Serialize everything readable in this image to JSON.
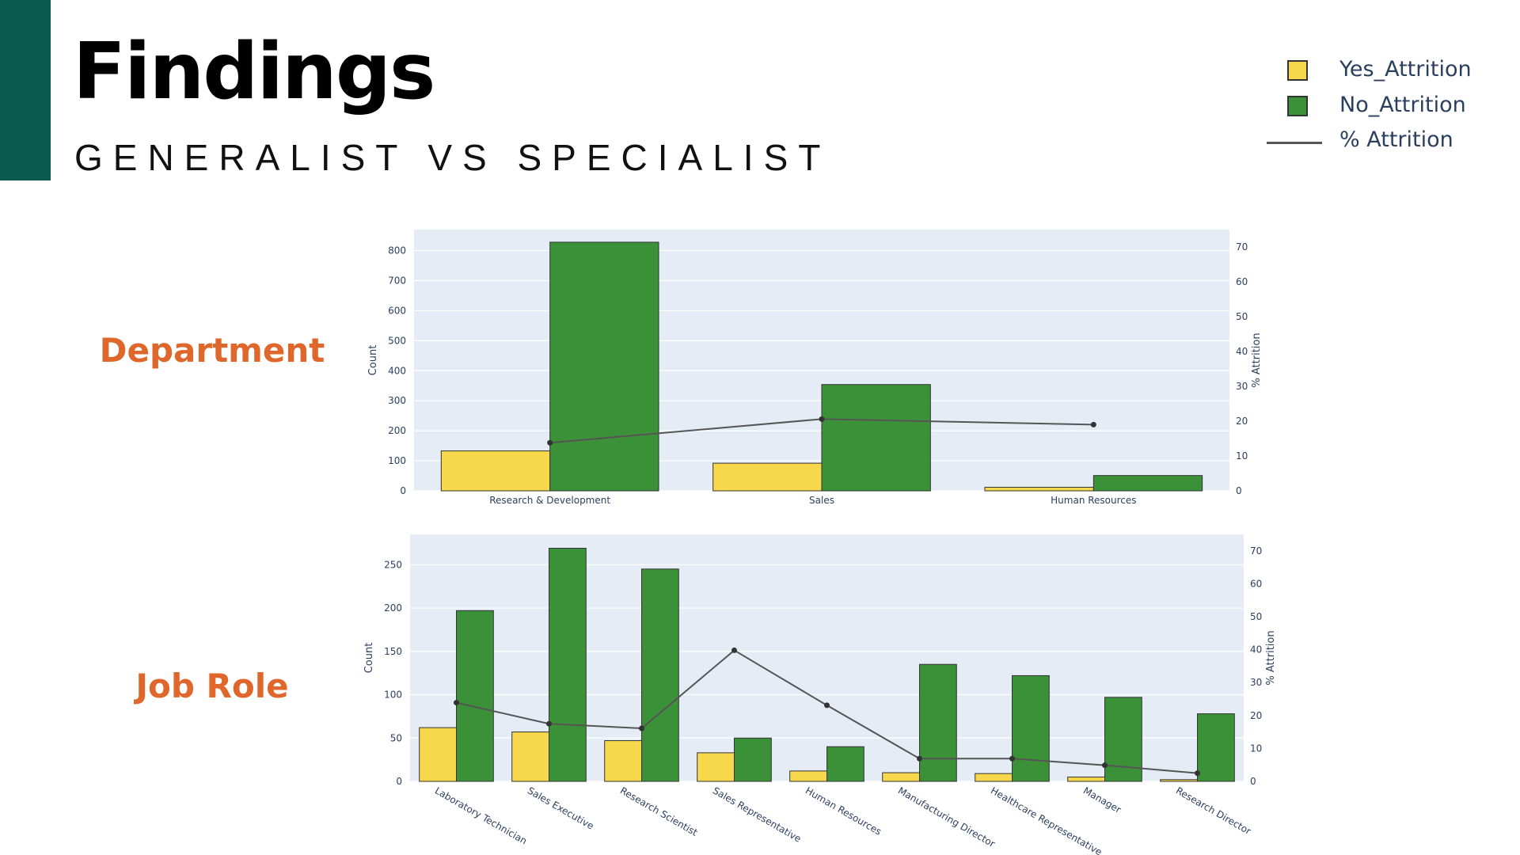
{
  "slide": {
    "title": "Findings",
    "subtitle": "GENERALIST VS SPECIALIST",
    "label_department": "Department",
    "label_job_role": "Job Role"
  },
  "legend": {
    "yes": "Yes_Attrition",
    "no": "No_Attrition",
    "pct": "% Attrition"
  },
  "colors": {
    "accent": "#0a5a4e",
    "yes": "#f7d84c",
    "no": "#3b9137",
    "line": "#555555",
    "plot_bg": "#e5ecf6",
    "label": "#e0672b"
  },
  "chart_data": [
    {
      "type": "bar",
      "categories": [
        "Research & Development",
        "Sales",
        "Human Resources"
      ],
      "series": [
        {
          "name": "Yes_Attrition",
          "values": [
            133,
            92,
            12
          ]
        },
        {
          "name": "No_Attrition",
          "values": [
            828,
            354,
            51
          ]
        },
        {
          "name": "% Attrition",
          "axis": "right",
          "kind": "line",
          "values": [
            13.8,
            20.6,
            19.0
          ]
        }
      ],
      "ylabel": "Count",
      "y2label": "% Attrition",
      "ylim": [
        0,
        870
      ],
      "y2lim": [
        0,
        75
      ],
      "yticks": [
        0,
        100,
        200,
        300,
        400,
        500,
        600,
        700,
        800
      ],
      "y2ticks": [
        0,
        10,
        20,
        30,
        40,
        50,
        60,
        70
      ],
      "grid": true
    },
    {
      "type": "bar",
      "categories": [
        "Laboratory Technician",
        "Sales Executive",
        "Research Scientist",
        "Sales Representative",
        "Human Resources",
        "Manufacturing Director",
        "Healthcare Representative",
        "Manager",
        "Research Director"
      ],
      "series": [
        {
          "name": "Yes_Attrition",
          "values": [
            62,
            57,
            47,
            33,
            12,
            10,
            9,
            5,
            2
          ]
        },
        {
          "name": "No_Attrition",
          "values": [
            197,
            269,
            245,
            50,
            40,
            135,
            122,
            97,
            78
          ]
        },
        {
          "name": "% Attrition",
          "axis": "right",
          "kind": "line",
          "values": [
            23.9,
            17.5,
            16.1,
            39.8,
            23.1,
            6.9,
            6.9,
            4.9,
            2.5
          ]
        }
      ],
      "ylabel": "Count",
      "y2label": "% Attrition",
      "ylim": [
        0,
        285
      ],
      "y2lim": [
        0,
        75
      ],
      "yticks": [
        0,
        50,
        100,
        150,
        200,
        250
      ],
      "y2ticks": [
        0,
        10,
        20,
        30,
        40,
        50,
        60,
        70
      ],
      "grid": true
    }
  ]
}
